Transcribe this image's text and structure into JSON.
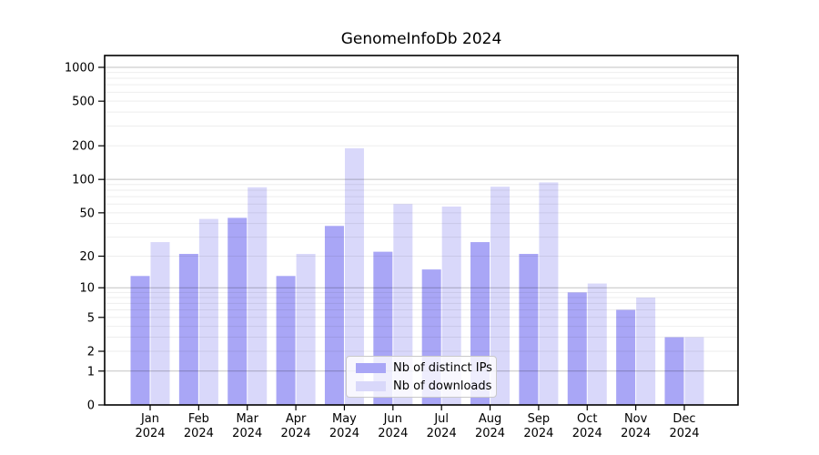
{
  "title": "GenomeInfoDb 2024",
  "colors": {
    "bar_ips": "#a9a6f6",
    "bar_downloads": "#d9d8fa",
    "grid_major": "rgba(0,0,0,0.24)",
    "grid_minor": "rgba(0,0,0,0.07)",
    "axis": "#000000",
    "text": "#000000",
    "legend_border": "#c9c9c9"
  },
  "chart_data": {
    "type": "bar",
    "title": "GenomeInfoDb 2024",
    "categories": [
      {
        "month": "Jan",
        "year": "2024"
      },
      {
        "month": "Feb",
        "year": "2024"
      },
      {
        "month": "Mar",
        "year": "2024"
      },
      {
        "month": "Apr",
        "year": "2024"
      },
      {
        "month": "May",
        "year": "2024"
      },
      {
        "month": "Jun",
        "year": "2024"
      },
      {
        "month": "Jul",
        "year": "2024"
      },
      {
        "month": "Aug",
        "year": "2024"
      },
      {
        "month": "Sep",
        "year": "2024"
      },
      {
        "month": "Oct",
        "year": "2024"
      },
      {
        "month": "Nov",
        "year": "2024"
      },
      {
        "month": "Dec",
        "year": "2024"
      }
    ],
    "series": [
      {
        "name": "Nb of distinct IPs",
        "color_key": "bar_ips",
        "values": [
          13,
          21,
          45,
          13,
          38,
          22,
          15,
          27,
          21,
          9,
          6,
          3
        ]
      },
      {
        "name": "Nb of downloads",
        "color_key": "bar_downloads",
        "values": [
          27,
          44,
          85,
          21,
          190,
          60,
          57,
          86,
          94,
          11,
          8,
          3
        ]
      }
    ],
    "xlabel": "",
    "ylabel": "",
    "yticks": [
      0,
      1,
      2,
      5,
      10,
      20,
      50,
      100,
      200,
      500,
      1000
    ],
    "ytick_major": [
      1,
      10,
      100,
      1000
    ],
    "yscale": "log1p",
    "ylim": [
      0,
      1000
    ],
    "grid": true,
    "legend_position": "lower center"
  }
}
